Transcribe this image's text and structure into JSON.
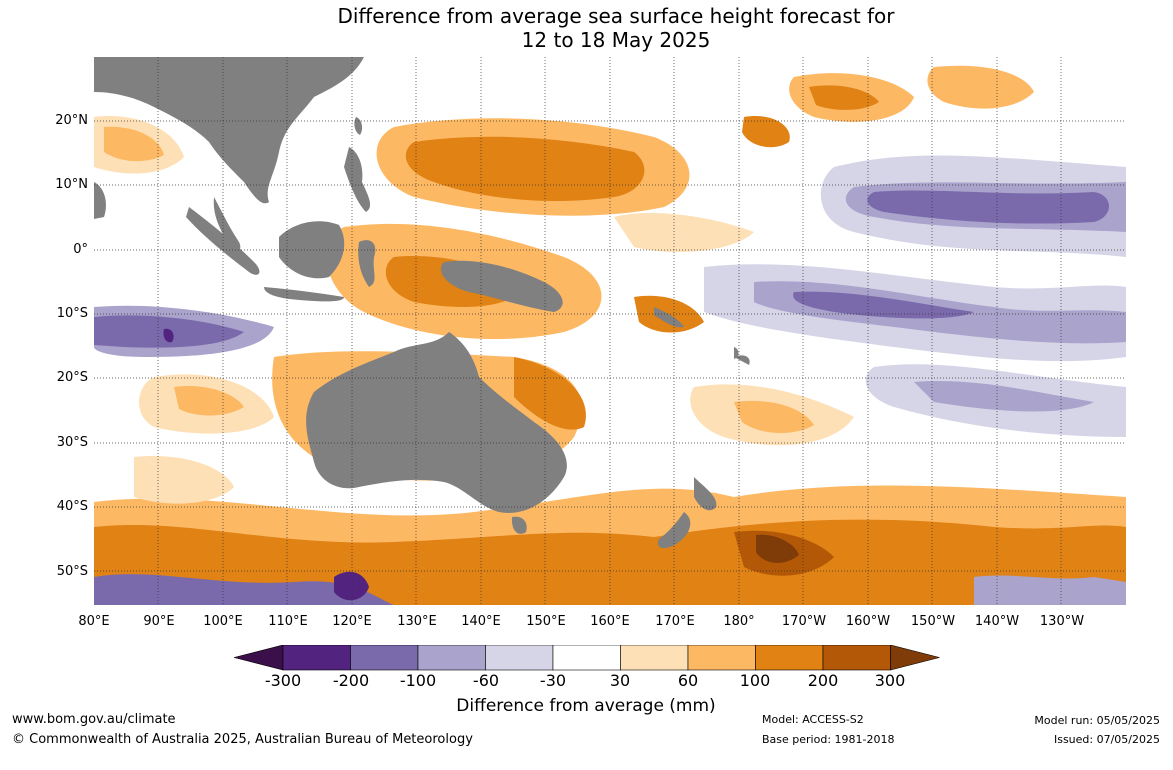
{
  "title": {
    "line1": "Difference from average sea surface height forecast for",
    "line2": "12 to 18 May 2025"
  },
  "map": {
    "region": "Indo-Pacific",
    "land_color": "#808080",
    "latitude_labels": [
      "20°N",
      "10°N",
      "0°",
      "10°S",
      "20°S",
      "30°S",
      "40°S",
      "50°S"
    ],
    "longitude_labels": [
      "80°E",
      "90°E",
      "100°E",
      "110°E",
      "120°E",
      "130°E",
      "140°E",
      "150°E",
      "160°E",
      "170°E",
      "180°",
      "170°W",
      "160°W",
      "150°W",
      "140°W",
      "130°W"
    ],
    "gridlines": "dotted"
  },
  "colorbar": {
    "title": "Difference from average (mm)",
    "tick_labels": [
      "-300",
      "-200",
      "-100",
      "-60",
      "-30",
      "30",
      "60",
      "100",
      "200",
      "300"
    ],
    "colors": [
      "#3b0f4a",
      "#53247f",
      "#7b6aab",
      "#aaa3cc",
      "#d6d5e8",
      "#ffffff",
      "#fee0b6",
      "#fdb863",
      "#e08214",
      "#b35806",
      "#7f3b08"
    ]
  },
  "footer": {
    "website": "www.bom.gov.au/climate",
    "copyright": "© Commonwealth of Australia 2025, Australian Bureau of Meteorology",
    "model": "Model: ACCESS-S2",
    "base_period": "Base period: 1981-2018",
    "model_run": "Model run: 05/05/2025",
    "issued": "Issued: 07/05/2025"
  }
}
